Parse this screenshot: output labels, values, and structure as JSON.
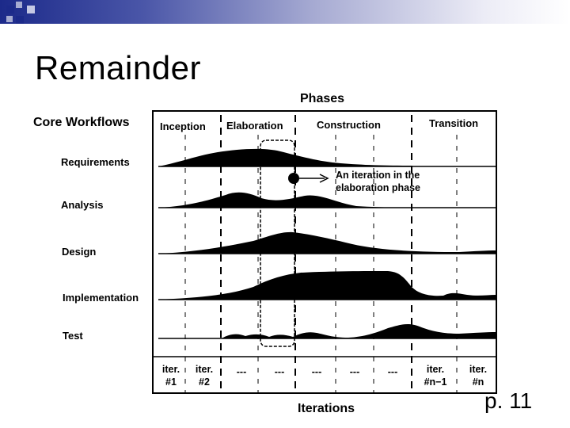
{
  "slide": {
    "title": "Remainder",
    "page_number": "p. 11"
  },
  "diagram": {
    "phases_heading": "Phases",
    "core_workflows_heading": "Core Workflows",
    "iterations_heading": "Iterations",
    "phases": [
      "Inception",
      "Elaboration",
      "Construction",
      "Transition"
    ],
    "workflows": [
      "Requirements",
      "Analysis",
      "Design",
      "Implementation",
      "Test"
    ],
    "iterations": [
      "iter.\n#1",
      "iter.\n#2",
      "---",
      "---",
      "---",
      "---",
      "---",
      "iter.\n#n−1",
      "iter.\n#n"
    ],
    "annotation": "An iteration in the\nelaboration phase"
  },
  "colors": {
    "accent": "#1c2a8a",
    "ink": "#000000"
  }
}
